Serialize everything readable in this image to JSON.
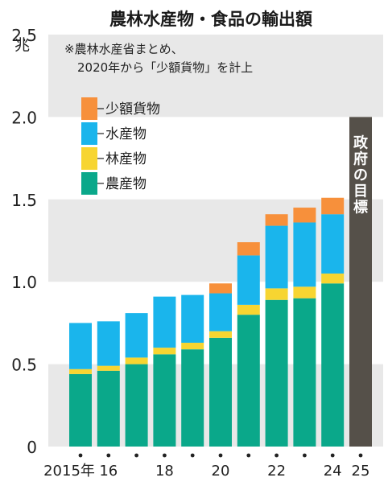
{
  "chart_data": {
    "type": "bar",
    "stacked": true,
    "title": "農林水産物・食品の輸出額",
    "unit": "兆",
    "note_lines": [
      "※農林水産省まとめ、",
      "2020年から「少額貨物」を計上"
    ],
    "x": [
      2015,
      2016,
      2017,
      2018,
      2019,
      2020,
      2021,
      2022,
      2023,
      2024,
      2025
    ],
    "x_tick_labels": [
      {
        "x": 2015,
        "label": "2015年"
      },
      {
        "x": 2016,
        "label": "16"
      },
      {
        "x": 2018,
        "label": "18"
      },
      {
        "x": 2020,
        "label": "20"
      },
      {
        "x": 2022,
        "label": "22"
      },
      {
        "x": 2024,
        "label": "24"
      },
      {
        "x": 2025,
        "label": "25"
      }
    ],
    "series": [
      {
        "name": "農産物",
        "color": "#0aa88a",
        "values": [
          0.44,
          0.46,
          0.5,
          0.56,
          0.59,
          0.66,
          0.8,
          0.89,
          0.9,
          0.99,
          null
        ]
      },
      {
        "name": "林産物",
        "color": "#f7d531",
        "values": [
          0.03,
          0.03,
          0.04,
          0.04,
          0.04,
          0.04,
          0.06,
          0.07,
          0.07,
          0.06,
          null
        ]
      },
      {
        "name": "水産物",
        "color": "#1ab5ec",
        "values": [
          0.28,
          0.27,
          0.27,
          0.31,
          0.29,
          0.23,
          0.3,
          0.38,
          0.39,
          0.36,
          null
        ]
      },
      {
        "name": "少額貨物",
        "color": "#f7903b",
        "values": [
          0,
          0,
          0,
          0,
          0,
          0.06,
          0.08,
          0.07,
          0.09,
          0.1,
          null
        ]
      }
    ],
    "target": {
      "x": 2025,
      "value": 2.0,
      "label": "政府の目標",
      "color": "#555049"
    },
    "y_ticks": [
      "0",
      "0.5",
      "1.0",
      "1.5",
      "2.0",
      "2.5"
    ],
    "ylim": [
      0,
      2.5
    ],
    "bands": [
      [
        0,
        0.5
      ],
      [
        1.0,
        1.5
      ],
      [
        2.0,
        2.5
      ]
    ],
    "band_color": "#e8e8e8",
    "legend_position": "top-left"
  }
}
